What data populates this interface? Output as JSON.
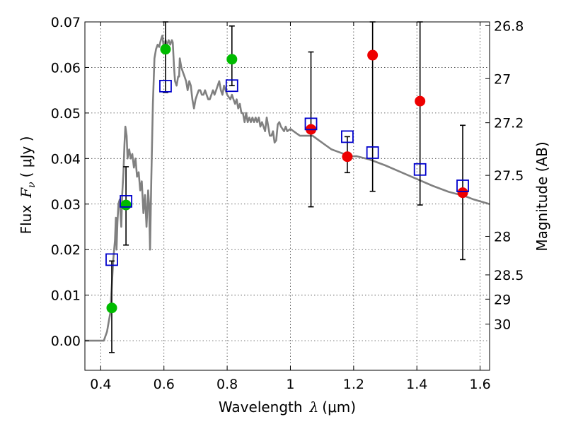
{
  "chart_data": {
    "type": "scatter",
    "xlabel_prefix": "Wavelength",
    "xlabel_symbol": "λ",
    "xlabel_unit": "(μm)",
    "ylabel_prefix": "Flux",
    "ylabel_symbol": "F",
    "ylabel_subscript": "ν",
    "ylabel_unit": "( μJy )",
    "ylabel_right": "Magnitude (AB)",
    "xlim": [
      0.35,
      1.63
    ],
    "ylim": [
      -0.0065,
      0.07
    ],
    "xticks": [
      0.4,
      0.6,
      0.8,
      1.0,
      1.2,
      1.4,
      1.6
    ],
    "xtick_labels": [
      "0.4",
      "0.6",
      "0.8",
      "1",
      "1.2",
      "1.4",
      "1.6"
    ],
    "yticks": [
      0.0,
      0.01,
      0.02,
      0.03,
      0.04,
      0.05,
      0.06,
      0.07
    ],
    "ytick_labels": [
      "0.00",
      "0.01",
      "0.02",
      "0.03",
      "0.04",
      "0.05",
      "0.06",
      "0.07"
    ],
    "right_ticks": [
      {
        "mag": 26.8,
        "label": "26.8"
      },
      {
        "mag": 27.0,
        "label": "27"
      },
      {
        "mag": 27.2,
        "label": "27.2"
      },
      {
        "mag": 27.5,
        "label": "27.5"
      },
      {
        "mag": 28.0,
        "label": "28"
      },
      {
        "mag": 28.5,
        "label": "28.5"
      },
      {
        "mag": 29.0,
        "label": "29"
      },
      {
        "mag": 30.0,
        "label": "30"
      }
    ],
    "grid": true,
    "colors": {
      "sed": "#808080",
      "green": "#00bb00",
      "red": "#ee0000",
      "model": "#0000cc",
      "errorbar": "#000000"
    },
    "sed_curve": [
      [
        0.35,
        0.0
      ],
      [
        0.41,
        0.0
      ],
      [
        0.415,
        0.001
      ],
      [
        0.42,
        0.002
      ],
      [
        0.425,
        0.004
      ],
      [
        0.43,
        0.006
      ],
      [
        0.435,
        0.012
      ],
      [
        0.44,
        0.018
      ],
      [
        0.445,
        0.022
      ],
      [
        0.448,
        0.027
      ],
      [
        0.45,
        0.02
      ],
      [
        0.453,
        0.026
      ],
      [
        0.456,
        0.03
      ],
      [
        0.46,
        0.031
      ],
      [
        0.465,
        0.025
      ],
      [
        0.468,
        0.032
      ],
      [
        0.472,
        0.037
      ],
      [
        0.475,
        0.043
      ],
      [
        0.478,
        0.047
      ],
      [
        0.482,
        0.045
      ],
      [
        0.485,
        0.04
      ],
      [
        0.49,
        0.042
      ],
      [
        0.495,
        0.04
      ],
      [
        0.5,
        0.041
      ],
      [
        0.505,
        0.038
      ],
      [
        0.51,
        0.04
      ],
      [
        0.515,
        0.036
      ],
      [
        0.52,
        0.037
      ],
      [
        0.525,
        0.033
      ],
      [
        0.53,
        0.035
      ],
      [
        0.535,
        0.028
      ],
      [
        0.54,
        0.032
      ],
      [
        0.545,
        0.025
      ],
      [
        0.55,
        0.033
      ],
      [
        0.553,
        0.03
      ],
      [
        0.556,
        0.02
      ],
      [
        0.56,
        0.035
      ],
      [
        0.565,
        0.052
      ],
      [
        0.57,
        0.062
      ],
      [
        0.575,
        0.064
      ],
      [
        0.58,
        0.065
      ],
      [
        0.585,
        0.0645
      ],
      [
        0.59,
        0.066
      ],
      [
        0.595,
        0.067
      ],
      [
        0.6,
        0.064
      ],
      [
        0.605,
        0.066
      ],
      [
        0.61,
        0.065
      ],
      [
        0.615,
        0.066
      ],
      [
        0.62,
        0.065
      ],
      [
        0.625,
        0.066
      ],
      [
        0.628,
        0.0655
      ],
      [
        0.632,
        0.06
      ],
      [
        0.635,
        0.057
      ],
      [
        0.64,
        0.056
      ],
      [
        0.645,
        0.058
      ],
      [
        0.648,
        0.058
      ],
      [
        0.65,
        0.062
      ],
      [
        0.655,
        0.06
      ],
      [
        0.66,
        0.059
      ],
      [
        0.665,
        0.058
      ],
      [
        0.67,
        0.057
      ],
      [
        0.675,
        0.055
      ],
      [
        0.68,
        0.057
      ],
      [
        0.685,
        0.056
      ],
      [
        0.69,
        0.053
      ],
      [
        0.695,
        0.051
      ],
      [
        0.7,
        0.053
      ],
      [
        0.705,
        0.054
      ],
      [
        0.71,
        0.055
      ],
      [
        0.715,
        0.055
      ],
      [
        0.72,
        0.054
      ],
      [
        0.725,
        0.054
      ],
      [
        0.73,
        0.055
      ],
      [
        0.735,
        0.054
      ],
      [
        0.74,
        0.053
      ],
      [
        0.745,
        0.053
      ],
      [
        0.75,
        0.054
      ],
      [
        0.755,
        0.055
      ],
      [
        0.76,
        0.054
      ],
      [
        0.765,
        0.055
      ],
      [
        0.77,
        0.056
      ],
      [
        0.775,
        0.057
      ],
      [
        0.78,
        0.055
      ],
      [
        0.785,
        0.054
      ],
      [
        0.79,
        0.056
      ],
      [
        0.795,
        0.055
      ],
      [
        0.8,
        0.054
      ],
      [
        0.805,
        0.0535
      ],
      [
        0.81,
        0.053
      ],
      [
        0.815,
        0.054
      ],
      [
        0.82,
        0.053
      ],
      [
        0.825,
        0.052
      ],
      [
        0.83,
        0.053
      ],
      [
        0.835,
        0.051
      ],
      [
        0.84,
        0.052
      ],
      [
        0.845,
        0.05
      ],
      [
        0.85,
        0.05
      ],
      [
        0.855,
        0.048
      ],
      [
        0.86,
        0.05
      ],
      [
        0.865,
        0.048
      ],
      [
        0.87,
        0.049
      ],
      [
        0.875,
        0.048
      ],
      [
        0.88,
        0.049
      ],
      [
        0.885,
        0.048
      ],
      [
        0.89,
        0.049
      ],
      [
        0.895,
        0.048
      ],
      [
        0.9,
        0.049
      ],
      [
        0.905,
        0.047
      ],
      [
        0.91,
        0.048
      ],
      [
        0.915,
        0.047
      ],
      [
        0.92,
        0.046
      ],
      [
        0.925,
        0.049
      ],
      [
        0.93,
        0.047
      ],
      [
        0.935,
        0.045
      ],
      [
        0.94,
        0.045
      ],
      [
        0.945,
        0.046
      ],
      [
        0.95,
        0.0435
      ],
      [
        0.955,
        0.044
      ],
      [
        0.96,
        0.0475
      ],
      [
        0.965,
        0.048
      ],
      [
        0.97,
        0.047
      ],
      [
        0.98,
        0.046
      ],
      [
        0.985,
        0.047
      ],
      [
        0.99,
        0.046
      ],
      [
        1.0,
        0.0465
      ],
      [
        1.01,
        0.046
      ],
      [
        1.02,
        0.0455
      ],
      [
        1.03,
        0.045
      ],
      [
        1.05,
        0.045
      ],
      [
        1.07,
        0.045
      ],
      [
        1.09,
        0.044
      ],
      [
        1.11,
        0.043
      ],
      [
        1.13,
        0.042
      ],
      [
        1.15,
        0.0415
      ],
      [
        1.17,
        0.041
      ],
      [
        1.19,
        0.0405
      ],
      [
        1.21,
        0.0405
      ],
      [
        1.25,
        0.0398
      ],
      [
        1.3,
        0.0385
      ],
      [
        1.35,
        0.037
      ],
      [
        1.4,
        0.0355
      ],
      [
        1.45,
        0.034
      ],
      [
        1.5,
        0.0327
      ],
      [
        1.55,
        0.0318
      ],
      [
        1.58,
        0.031
      ],
      [
        1.6,
        0.0306
      ],
      [
        1.63,
        0.03
      ]
    ],
    "series": [
      {
        "marker": "circle",
        "color_key": "green",
        "points": [
          {
            "x": 0.435,
            "y": 0.0072,
            "yerr_low": 0.0098,
            "yerr_high": 0.0103
          },
          {
            "x": 0.48,
            "y": 0.0298,
            "yerr_low": 0.0088,
            "yerr_high": 0.0084
          },
          {
            "x": 0.605,
            "y": 0.064
          },
          {
            "x": 0.815,
            "y": 0.0618
          }
        ]
      },
      {
        "marker": "circle",
        "color_key": "red",
        "points": [
          {
            "x": 1.065,
            "y": 0.0464
          },
          {
            "x": 1.18,
            "y": 0.0404
          },
          {
            "x": 1.26,
            "y": 0.0627
          },
          {
            "x": 1.41,
            "y": 0.0526
          },
          {
            "x": 1.545,
            "y": 0.0325
          }
        ]
      },
      {
        "marker": "open-square",
        "color_key": "model",
        "points": [
          {
            "x": 0.435,
            "y": 0.0178
          },
          {
            "x": 0.48,
            "y": 0.0306
          },
          {
            "x": 0.605,
            "y": 0.0559,
            "yerr_low": 0.0014,
            "yerr_high": 0.0141
          },
          {
            "x": 0.815,
            "y": 0.056,
            "yerr_low": 0.0,
            "yerr_high": 0.0131
          },
          {
            "x": 1.065,
            "y": 0.0476,
            "yerr_low": 0.0182,
            "yerr_high": 0.0158
          },
          {
            "x": 1.18,
            "y": 0.0448,
            "yerr_low": 0.0079,
            "yerr_high": 0.0
          },
          {
            "x": 1.26,
            "y": 0.0413,
            "yerr_low": 0.0085,
            "yerr_high": 0.0287
          },
          {
            "x": 1.41,
            "y": 0.0376,
            "yerr_low": 0.0078,
            "yerr_high": 0.0324
          },
          {
            "x": 1.545,
            "y": 0.034,
            "yerr_low": 0.0162,
            "yerr_high": 0.0133
          }
        ]
      }
    ]
  }
}
